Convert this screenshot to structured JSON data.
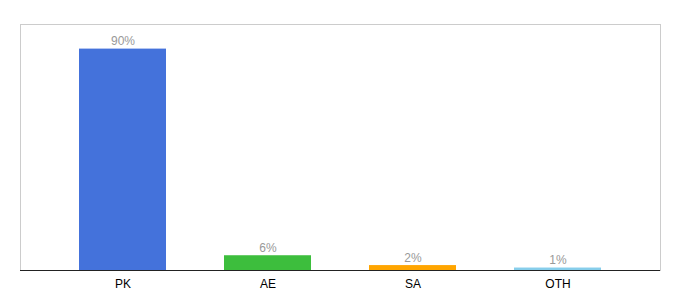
{
  "chart_data": {
    "type": "bar",
    "categories": [
      "PK",
      "AE",
      "SA",
      "OTH"
    ],
    "values": [
      90,
      6,
      2,
      1
    ],
    "value_labels": [
      "90%",
      "6%",
      "2%",
      "1%"
    ],
    "colors": [
      "#4472DB",
      "#3DBE3D",
      "#FFA500",
      "#87CEEB"
    ],
    "ylim": [
      0,
      100
    ],
    "grid": false,
    "data_labels": true,
    "tick_labels": "x"
  }
}
